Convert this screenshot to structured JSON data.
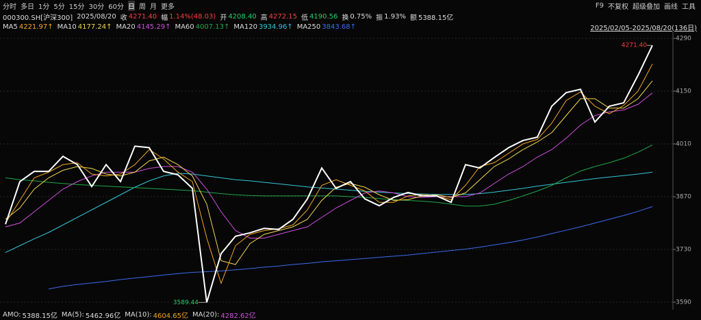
{
  "toolbar": {
    "left": [
      "分时",
      "多日",
      "1分",
      "5分",
      "15分",
      "30分",
      "60分",
      "日",
      "周",
      "月",
      "更多"
    ],
    "right": [
      "F9",
      "不复权",
      "超级叠加",
      "画线",
      "工具"
    ]
  },
  "quote": {
    "symbol": "000300.SH[沪深300]",
    "date": "2025/08/20",
    "items": [
      {
        "label": "收",
        "value": "4271.40",
        "color": "#ff3b3b"
      },
      {
        "label": "幅",
        "value": "1.14%(48.03)",
        "color": "#ff3b3b"
      },
      {
        "label": "开",
        "value": "4208.40",
        "color": "#1fd36a"
      },
      {
        "label": "高",
        "value": "4272.15",
        "color": "#ff3b3b"
      },
      {
        "label": "低",
        "value": "4190.56",
        "color": "#1fd36a"
      },
      {
        "label": "换",
        "value": "0.75%",
        "color": "#ddd"
      },
      {
        "label": "振",
        "value": "1.93%",
        "color": "#ddd"
      },
      {
        "label": "额",
        "value": "5388.15亿",
        "color": "#ddd"
      }
    ]
  },
  "range_label": "2025/02/05-2025/08/20(136日)",
  "chart_data": {
    "type": "line",
    "ylim": [
      3570,
      4300
    ],
    "yticks": [
      3590,
      3730,
      3870,
      4010,
      4150,
      4290
    ],
    "grid": true,
    "annotations": {
      "max_label": "4271.40",
      "min_label": "3589.44"
    },
    "series": [
      {
        "color": "#ffffff",
        "values": [
          3797,
          3910,
          3937,
          3937,
          3977,
          3955,
          3897,
          3955,
          3910,
          4004,
          4000,
          3937,
          3928,
          3892,
          3589.44,
          3719,
          3765,
          3774,
          3786,
          3783,
          3810,
          3864,
          3946,
          3892,
          3910,
          3864,
          3846,
          3868,
          3881,
          3872,
          3872,
          3855,
          3955,
          3946,
          3974,
          4000,
          4019,
          4028,
          4110,
          4146,
          4155,
          4068,
          4110,
          4119,
          4192,
          4271.4
        ]
      },
      {
        "name": "MA5",
        "legend_value": "4221.97↑",
        "color": "#f6a623",
        "values": [
          3800,
          3860,
          3920,
          3935,
          3955,
          3960,
          3930,
          3925,
          3930,
          3955,
          3995,
          3970,
          3935,
          3910,
          3760,
          3640,
          3740,
          3770,
          3780,
          3785,
          3795,
          3835,
          3900,
          3915,
          3900,
          3885,
          3855,
          3855,
          3872,
          3876,
          3872,
          3862,
          3900,
          3950,
          3960,
          3985,
          4010,
          4022,
          4065,
          4125,
          4148,
          4110,
          4090,
          4112,
          4150,
          4221.97
        ]
      },
      {
        "name": "MA10",
        "legend_value": "4177.24↑",
        "color": "#f2d94e",
        "values": [
          3810,
          3840,
          3890,
          3920,
          3940,
          3950,
          3945,
          3930,
          3925,
          3935,
          3965,
          3975,
          3955,
          3925,
          3850,
          3700,
          3690,
          3745,
          3770,
          3780,
          3790,
          3810,
          3860,
          3895,
          3905,
          3895,
          3875,
          3860,
          3862,
          3872,
          3875,
          3868,
          3880,
          3915,
          3950,
          3970,
          3995,
          4015,
          4040,
          4085,
          4130,
          4130,
          4105,
          4105,
          4130,
          4177.24
        ]
      },
      {
        "name": "MA20",
        "legend_value": "4145.29↑",
        "color": "#d04fe0",
        "values": [
          3790,
          3800,
          3830,
          3860,
          3890,
          3910,
          3925,
          3935,
          3935,
          3935,
          3945,
          3950,
          3950,
          3935,
          3890,
          3830,
          3780,
          3760,
          3760,
          3770,
          3780,
          3790,
          3815,
          3840,
          3860,
          3880,
          3885,
          3880,
          3870,
          3868,
          3870,
          3870,
          3870,
          3880,
          3905,
          3930,
          3950,
          3975,
          3995,
          4025,
          4060,
          4085,
          4095,
          4100,
          4115,
          4145.29
        ]
      },
      {
        "name": "MA60",
        "legend_value": "4007.13↑",
        "color": "#1fa84a",
        "values": [
          3920,
          3915,
          3912,
          3908,
          3905,
          3902,
          3900,
          3898,
          3896,
          3894,
          3892,
          3890,
          3888,
          3886,
          3882,
          3878,
          3875,
          3873,
          3872,
          3872,
          3872,
          3872,
          3872,
          3872,
          3870,
          3868,
          3865,
          3862,
          3860,
          3858,
          3855,
          3850,
          3845,
          3845,
          3850,
          3860,
          3872,
          3885,
          3900,
          3920,
          3938,
          3950,
          3960,
          3972,
          3988,
          4007.13
        ]
      },
      {
        "name": "MA120",
        "legend_value": "3934.96↑",
        "color": "#35c6d8",
        "values": [
          3722,
          3740,
          3758,
          3775,
          3795,
          3815,
          3835,
          3855,
          3875,
          3895,
          3912,
          3925,
          3932,
          3930,
          3925,
          3920,
          3915,
          3912,
          3908,
          3904,
          3900,
          3896,
          3893,
          3890,
          3887,
          3884,
          3882,
          3880,
          3878,
          3877,
          3876,
          3876,
          3876,
          3878,
          3882,
          3887,
          3892,
          3898,
          3903,
          3908,
          3913,
          3918,
          3922,
          3926,
          3930,
          3934.96
        ]
      },
      {
        "name": "MA250",
        "legend_value": "3843.68↑",
        "color": "#3a6cf0",
        "values": [
          null,
          null,
          null,
          3625,
          3632,
          3637,
          3641,
          3645,
          3650,
          3654,
          3658,
          3662,
          3666,
          3669,
          3671,
          3673,
          3676,
          3679,
          3683,
          3686,
          3690,
          3693,
          3697,
          3700,
          3703,
          3706,
          3709,
          3712,
          3715,
          3719,
          3723,
          3727,
          3731,
          3736,
          3742,
          3748,
          3755,
          3763,
          3772,
          3781,
          3790,
          3800,
          3810,
          3820,
          3831,
          3843.68
        ]
      }
    ]
  },
  "footer": [
    {
      "label": "AMO:",
      "value": "5388.15亿",
      "color": "#ddd"
    },
    {
      "label": "MA(5):",
      "value": "5462.96亿",
      "color": "#ddd"
    },
    {
      "label": "MA(10):",
      "value": "4604.65亿",
      "color": "#f6a623"
    },
    {
      "label": "MA(20):",
      "value": "4282.62亿",
      "color": "#d04fe0"
    }
  ]
}
